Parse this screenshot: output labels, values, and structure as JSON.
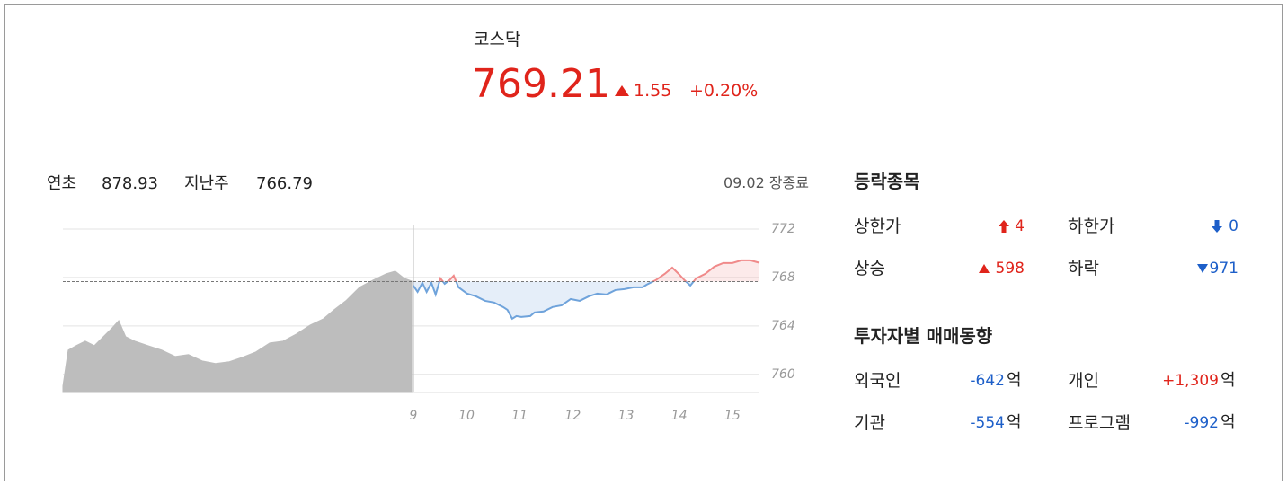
{
  "header": {
    "name": "코스닥",
    "price": "769.21",
    "change": "1.55",
    "change_rate": "+0.20%"
  },
  "summary": {
    "items": [
      {
        "label": "연초",
        "value": "878.93"
      },
      {
        "label": "지난주",
        "value": "766.79"
      }
    ],
    "status": "09.02 장종료"
  },
  "chart_data": {
    "type": "line",
    "xlim": [
      2.41,
      15.51
    ],
    "ylim": [
      758.5,
      772.37
    ],
    "xticks": [
      9,
      10,
      11,
      12,
      13,
      14,
      15
    ],
    "yticks": [
      772,
      768,
      764,
      760
    ],
    "baseline": 767.66,
    "grid": true,
    "series": [
      {
        "color": "#bdbdbd",
        "x": [
          2.41,
          2.51,
          2.66,
          2.83,
          3.0,
          3.17,
          3.34,
          3.46,
          3.59,
          3.76,
          4.01,
          4.27,
          4.52,
          4.77,
          5.03,
          5.28,
          5.54,
          5.79,
          6.04,
          6.3,
          6.55,
          6.8,
          7.06,
          7.31,
          7.51,
          7.73,
          7.99,
          8.24,
          8.49,
          8.66,
          8.83,
          8.97
        ],
        "values": [
          759.04,
          762.0,
          762.37,
          762.74,
          762.37,
          763.11,
          763.85,
          764.44,
          763.11,
          762.74,
          762.37,
          762.0,
          761.48,
          761.63,
          761.11,
          760.89,
          761.04,
          761.41,
          761.85,
          762.59,
          762.74,
          763.33,
          764.07,
          764.59,
          765.33,
          766.07,
          767.19,
          767.78,
          768.3,
          768.52,
          767.93,
          767.7
        ]
      },
      {
        "color_up": "#f08a8a",
        "color_down": "#6fa3db",
        "x": [
          9.0,
          9.08,
          9.17,
          9.25,
          9.34,
          9.42,
          9.51,
          9.59,
          9.68,
          9.76,
          9.85,
          10.01,
          10.18,
          10.35,
          10.52,
          10.69,
          10.77,
          10.86,
          10.94,
          11.03,
          11.2,
          11.28,
          11.45,
          11.62,
          11.79,
          11.96,
          12.13,
          12.3,
          12.46,
          12.63,
          12.8,
          12.97,
          13.14,
          13.31,
          13.39,
          13.56,
          13.73,
          13.87,
          13.99,
          14.1,
          14.21,
          14.32,
          14.49,
          14.66,
          14.83,
          15.0,
          15.17,
          15.34,
          15.51
        ],
        "values": [
          767.33,
          766.81,
          767.56,
          766.81,
          767.56,
          766.59,
          767.93,
          767.48,
          767.78,
          768.15,
          767.19,
          766.67,
          766.44,
          766.07,
          765.93,
          765.56,
          765.33,
          764.59,
          764.81,
          764.74,
          764.81,
          765.11,
          765.19,
          765.56,
          765.7,
          766.22,
          766.07,
          766.44,
          766.67,
          766.59,
          766.96,
          767.04,
          767.19,
          767.19,
          767.41,
          767.78,
          768.3,
          768.81,
          768.3,
          767.78,
          767.33,
          767.93,
          768.3,
          768.89,
          769.19,
          769.19,
          769.41,
          769.41,
          769.21
        ]
      }
    ]
  },
  "advance_decline": {
    "title": "등락종목",
    "items": [
      {
        "label": "상한가",
        "value": "4"
      },
      {
        "label": "하한가",
        "value": "0"
      },
      {
        "label": "상승",
        "value": "598"
      },
      {
        "label": "하락",
        "value": "971"
      }
    ]
  },
  "investors": {
    "title": "투자자별 매매동향",
    "unit": "억",
    "items": [
      {
        "label": "외국인",
        "value": "-642"
      },
      {
        "label": "개인",
        "value": "+1,309"
      },
      {
        "label": "기관",
        "value": "-554"
      },
      {
        "label": "프로그램",
        "value": "-992"
      }
    ]
  }
}
